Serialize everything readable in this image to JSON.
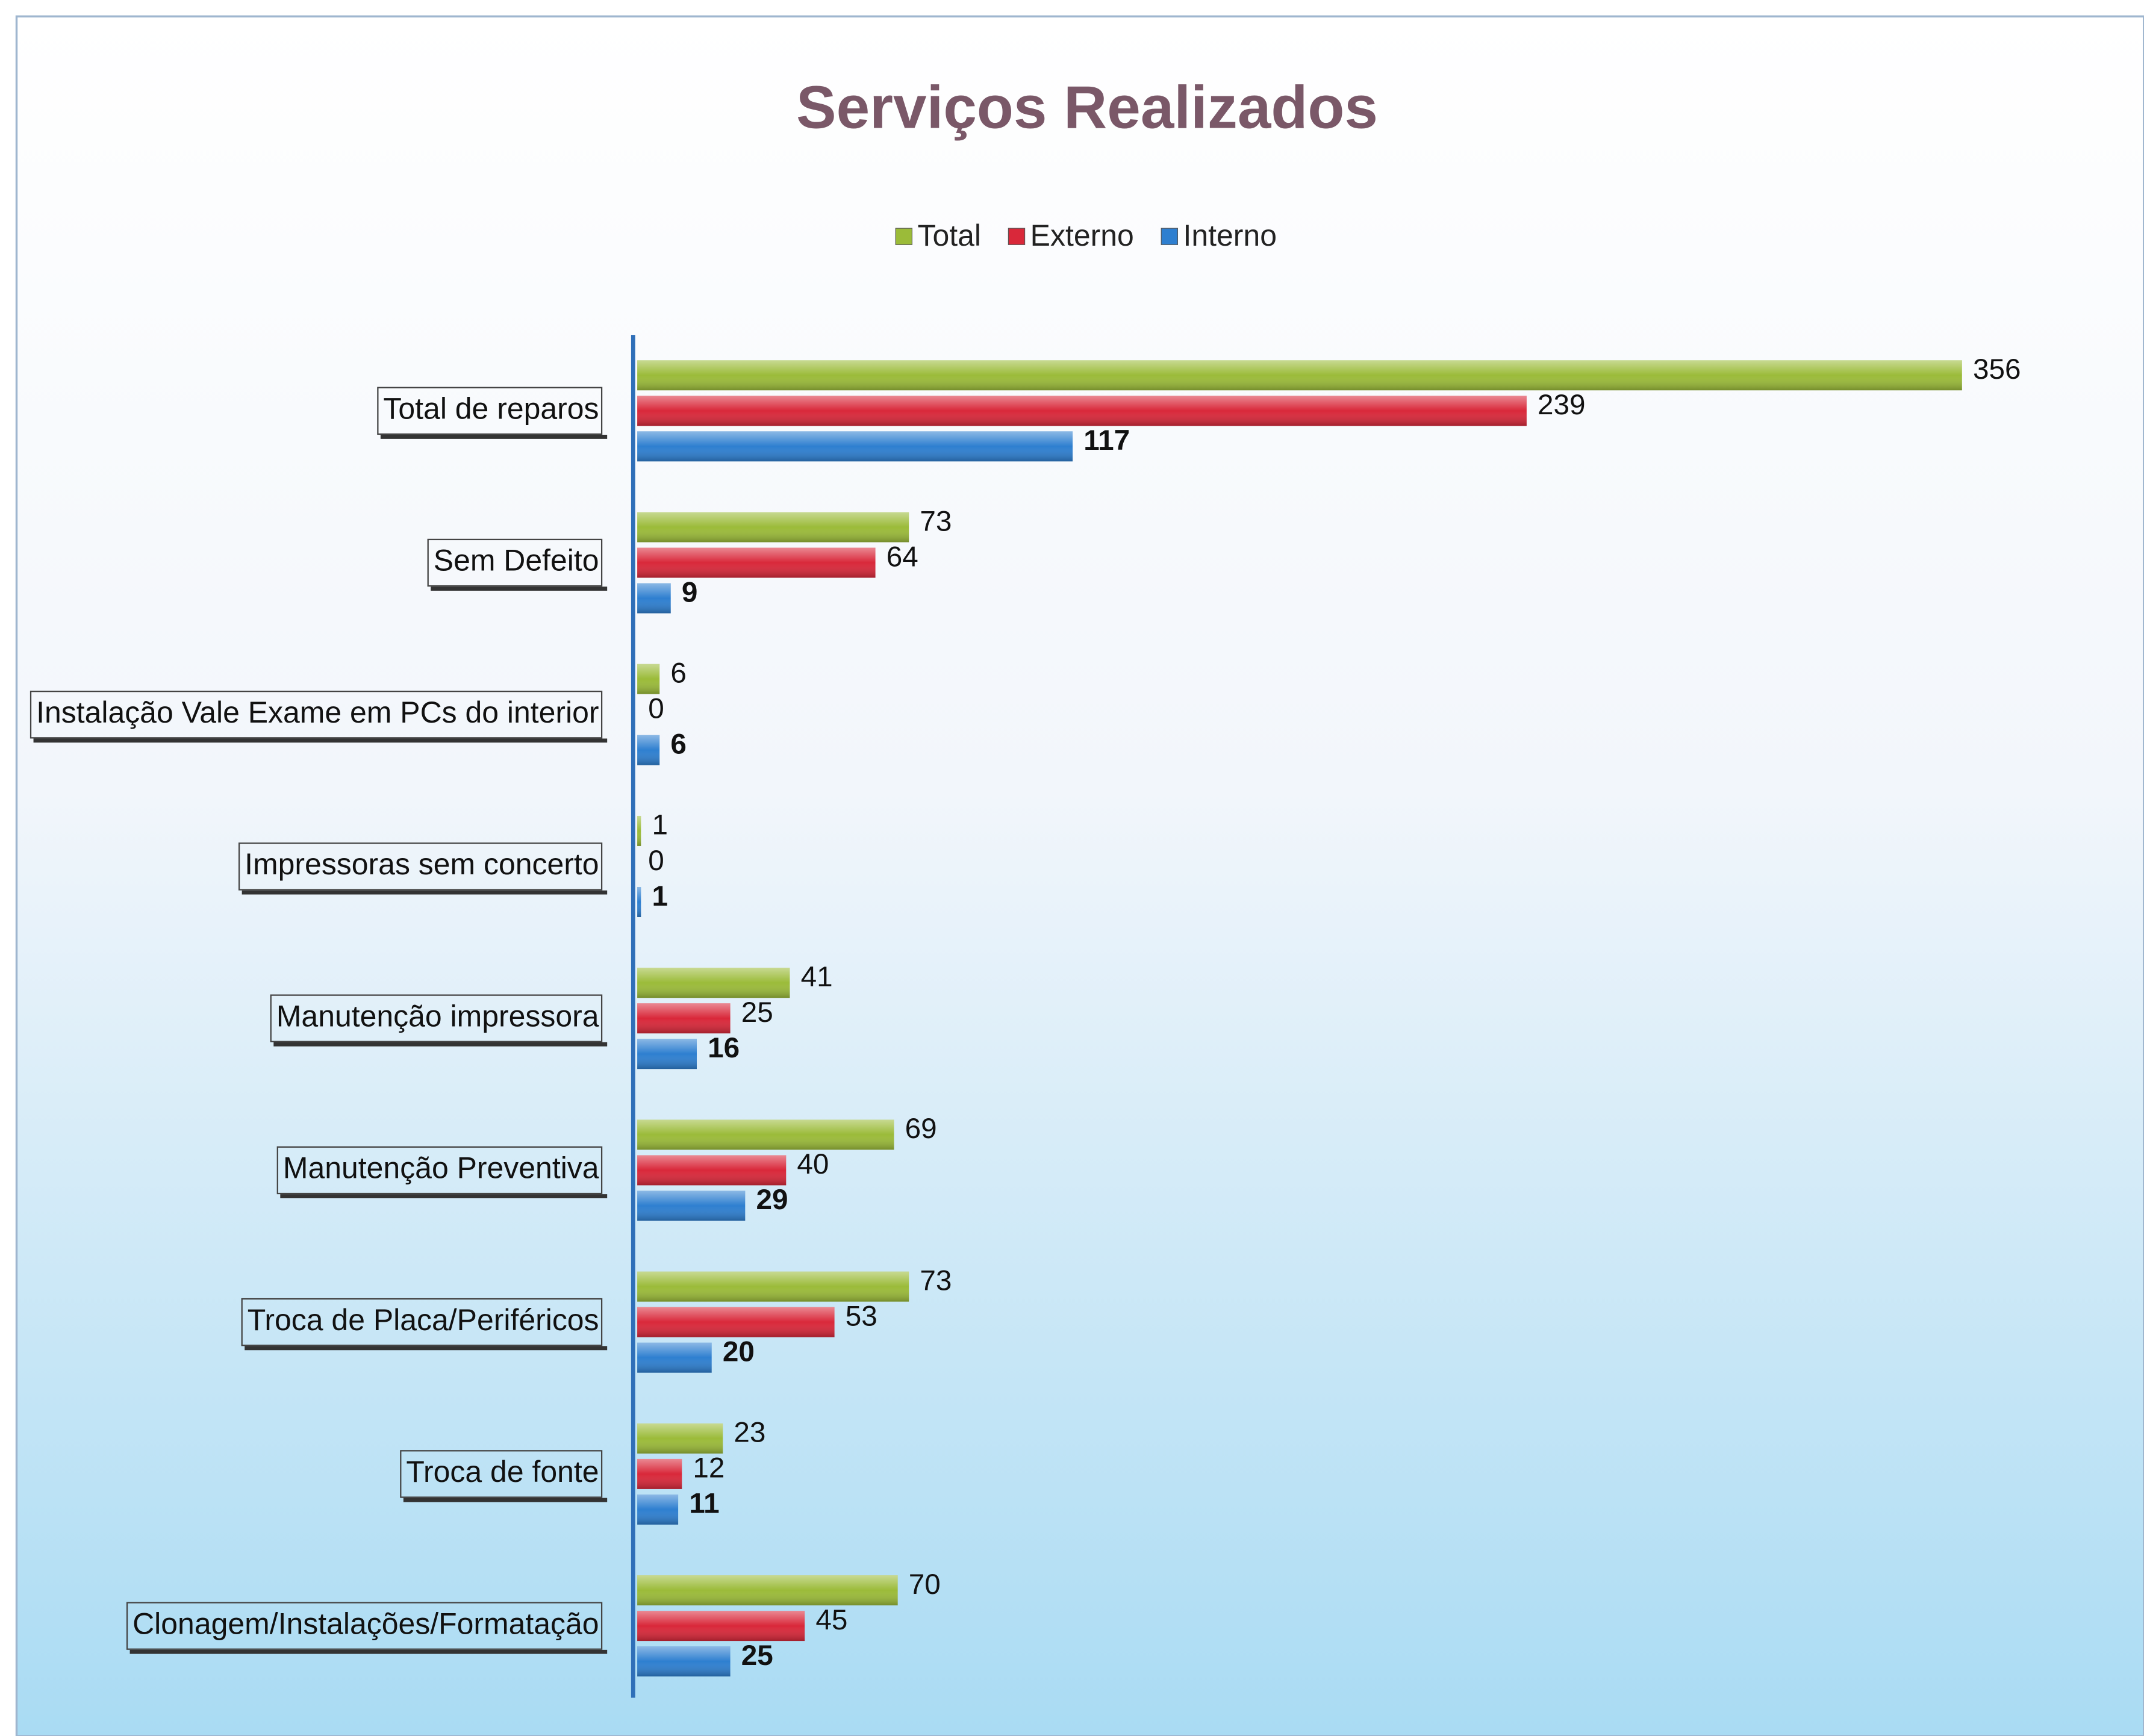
{
  "chart_data": {
    "type": "bar",
    "orientation": "horizontal",
    "title": "Serviços Realizados",
    "categories": [
      "Total de reparos",
      "Sem Defeito",
      "Instalação Vale Exame em PCs do interior",
      "Impressoras sem concerto",
      "Manutenção impressora",
      "Manutenção Preventiva",
      "Troca de Placa/Periféricos",
      "Troca de fonte",
      "Clonagem/Instalações/Formatação"
    ],
    "series": [
      {
        "name": "Total",
        "color": "#9bbb39",
        "values": [
          356,
          73,
          6,
          1,
          41,
          69,
          73,
          23,
          70
        ]
      },
      {
        "name": "Externo",
        "color": "#d9283a",
        "values": [
          239,
          64,
          0,
          0,
          25,
          40,
          53,
          12,
          45
        ]
      },
      {
        "name": "Interno",
        "color": "#2e7fd0",
        "values": [
          117,
          9,
          6,
          1,
          16,
          29,
          20,
          11,
          25
        ]
      }
    ],
    "legend": "top",
    "grid": false
  }
}
